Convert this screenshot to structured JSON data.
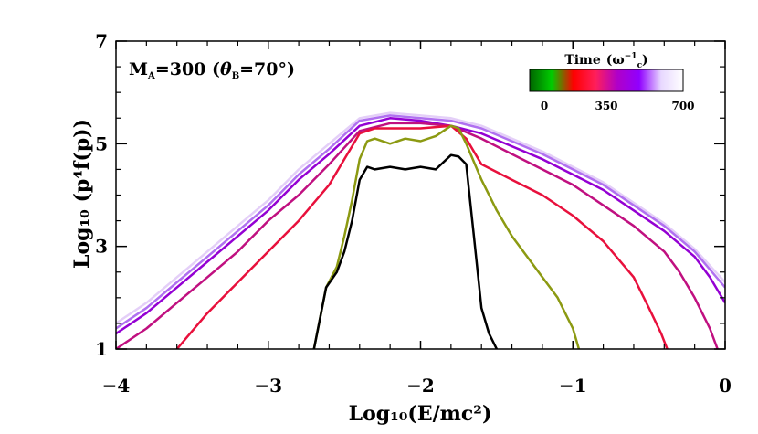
{
  "chart_data": {
    "type": "line",
    "title": "",
    "xlabel": "Log₁₀(E/mc²)",
    "ylabel": "Log₁₀ (p⁴f(p))",
    "xlim": [
      -4,
      0
    ],
    "ylim": [
      1,
      7
    ],
    "x_ticks": [
      -4,
      -3,
      -2,
      -1,
      0
    ],
    "x_tick_labels": [
      "−4",
      "−3",
      "−2",
      "−1",
      "0"
    ],
    "y_ticks": [
      1,
      3,
      5,
      7
    ],
    "y_tick_labels": [
      "1",
      "3",
      "5",
      "7"
    ],
    "annotation": "M_A=300  (θ_B=70°)",
    "annotation_parts": {
      "m": "M",
      "m_sub": "A",
      "eq": "=300  (",
      "theta": "θ",
      "theta_sub": "B",
      "angle": "=70°)"
    },
    "colorbar": {
      "title": "Time (ω⁻¹c)",
      "title_parts": {
        "word": "Time",
        "open": "(ω",
        "sup": "−1",
        "sub": "c",
        "close": ")"
      },
      "ticks": [
        "0",
        "350",
        "700"
      ],
      "tick_values": [
        0,
        350,
        700
      ],
      "colors": [
        "#006400",
        "#00cc00",
        "#ff0000",
        "#ff1f5a",
        "#b000c8",
        "#9000ff",
        "#e8d8ff",
        "#ffffff"
      ]
    },
    "series": [
      {
        "name": "t0",
        "color": "#000000",
        "x": [
          -2.7,
          -2.62,
          -2.55,
          -2.5,
          -2.45,
          -2.4,
          -2.35,
          -2.3,
          -2.2,
          -2.1,
          -2.0,
          -1.9,
          -1.8,
          -1.75,
          -1.7,
          -1.65,
          -1.6,
          -1.55,
          -1.5
        ],
        "y": [
          1.0,
          2.2,
          2.5,
          2.9,
          3.5,
          4.3,
          4.55,
          4.5,
          4.55,
          4.5,
          4.55,
          4.5,
          4.78,
          4.75,
          4.6,
          3.2,
          1.8,
          1.3,
          1.0
        ]
      },
      {
        "name": "t1",
        "color": "#8c9a12",
        "x": [
          -2.7,
          -2.62,
          -2.55,
          -2.5,
          -2.45,
          -2.4,
          -2.35,
          -2.3,
          -2.2,
          -2.1,
          -2.0,
          -1.9,
          -1.8,
          -1.75,
          -1.7,
          -1.6,
          -1.5,
          -1.4,
          -1.3,
          -1.2,
          -1.1,
          -1.05,
          -1.0,
          -0.96
        ],
        "y": [
          1.0,
          2.2,
          2.6,
          3.2,
          3.9,
          4.7,
          5.05,
          5.1,
          5.0,
          5.1,
          5.05,
          5.15,
          5.35,
          5.3,
          5.0,
          4.3,
          3.7,
          3.2,
          2.8,
          2.4,
          2.0,
          1.7,
          1.4,
          1.0
        ]
      },
      {
        "name": "t2",
        "color": "#e8103c",
        "x": [
          -3.6,
          -3.4,
          -3.2,
          -3.0,
          -2.8,
          -2.6,
          -2.4,
          -2.3,
          -2.2,
          -2.0,
          -1.8,
          -1.7,
          -1.6,
          -1.4,
          -1.2,
          -1.0,
          -0.8,
          -0.6,
          -0.5,
          -0.42,
          -0.38
        ],
        "y": [
          1.0,
          1.7,
          2.3,
          2.9,
          3.5,
          4.2,
          5.2,
          5.3,
          5.3,
          5.3,
          5.35,
          5.1,
          4.6,
          4.3,
          4.0,
          3.6,
          3.1,
          2.4,
          1.8,
          1.3,
          1.0
        ]
      },
      {
        "name": "t3",
        "color": "#c01080",
        "x": [
          -4.0,
          -3.8,
          -3.6,
          -3.4,
          -3.2,
          -3.0,
          -2.8,
          -2.6,
          -2.4,
          -2.2,
          -2.0,
          -1.8,
          -1.6,
          -1.4,
          -1.2,
          -1.0,
          -0.8,
          -0.6,
          -0.4,
          -0.3,
          -0.2,
          -0.1,
          -0.05
        ],
        "y": [
          1.0,
          1.4,
          1.9,
          2.4,
          2.9,
          3.5,
          4.0,
          4.6,
          5.25,
          5.4,
          5.4,
          5.35,
          5.1,
          4.8,
          4.5,
          4.2,
          3.8,
          3.4,
          2.9,
          2.5,
          2.0,
          1.4,
          1.0
        ]
      },
      {
        "name": "t4",
        "color": "#9400d3",
        "x": [
          -4.0,
          -3.8,
          -3.6,
          -3.4,
          -3.2,
          -3.0,
          -2.8,
          -2.6,
          -2.4,
          -2.2,
          -2.0,
          -1.8,
          -1.6,
          -1.4,
          -1.2,
          -1.0,
          -0.8,
          -0.6,
          -0.4,
          -0.2,
          -0.1,
          0.0
        ],
        "y": [
          1.3,
          1.7,
          2.2,
          2.7,
          3.2,
          3.7,
          4.3,
          4.8,
          5.35,
          5.5,
          5.45,
          5.35,
          5.2,
          4.95,
          4.7,
          4.4,
          4.1,
          3.7,
          3.3,
          2.8,
          2.4,
          1.9
        ]
      },
      {
        "name": "t5",
        "color": "#b070f0",
        "x": [
          -4.0,
          -3.8,
          -3.6,
          -3.4,
          -3.2,
          -3.0,
          -2.8,
          -2.6,
          -2.4,
          -2.2,
          -2.0,
          -1.8,
          -1.6,
          -1.4,
          -1.2,
          -1.0,
          -0.8,
          -0.6,
          -0.4,
          -0.2,
          0.0
        ],
        "y": [
          1.4,
          1.8,
          2.3,
          2.8,
          3.3,
          3.8,
          4.4,
          4.9,
          5.45,
          5.55,
          5.5,
          5.45,
          5.3,
          5.05,
          4.8,
          4.5,
          4.2,
          3.8,
          3.4,
          2.9,
          2.2
        ]
      },
      {
        "name": "t6",
        "color": "#e4cff8",
        "x": [
          -4.0,
          -3.8,
          -3.6,
          -3.4,
          -3.2,
          -3.0,
          -2.8,
          -2.6,
          -2.4,
          -2.2,
          -2.0,
          -1.8,
          -1.6,
          -1.4,
          -1.2,
          -1.0,
          -0.8,
          -0.6,
          -0.4,
          -0.2,
          0.0
        ],
        "y": [
          1.5,
          1.9,
          2.4,
          2.9,
          3.4,
          3.9,
          4.5,
          5.0,
          5.5,
          5.6,
          5.55,
          5.5,
          5.35,
          5.1,
          4.85,
          4.55,
          4.25,
          3.85,
          3.45,
          2.95,
          2.3
        ]
      }
    ]
  }
}
